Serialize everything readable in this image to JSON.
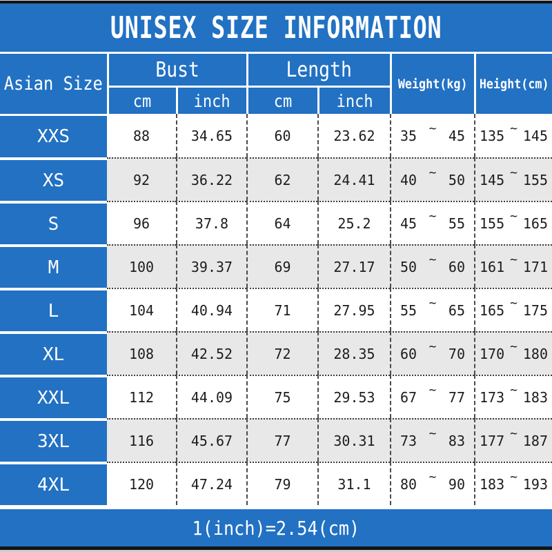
{
  "title": "UNISEX SIZE INFORMATION",
  "footer_note": "1(inch)=2.54(cm)",
  "tilde": "~",
  "colors": {
    "blue": "#2271c3",
    "row_shade": "#e8e8e8",
    "row_plain": "#ffffff",
    "bar_dark": "#141414",
    "text_dark": "#1c1c1c",
    "text_light": "#ffffff"
  },
  "header": {
    "corner": "Asian Size",
    "bust_group": "Bust",
    "length_group": "Length",
    "cm": "cm",
    "inch": "inch",
    "weight": "Weight(kg)",
    "height": "Height(cm)"
  },
  "rows": [
    {
      "size": "XXS",
      "bust_cm": "88",
      "bust_inch": "34.65",
      "length_cm": "60",
      "length_inch": "23.62",
      "weight_min": "35",
      "weight_max": "45",
      "height_min": "135",
      "height_max": "145"
    },
    {
      "size": "XS",
      "bust_cm": "92",
      "bust_inch": "36.22",
      "length_cm": "62",
      "length_inch": "24.41",
      "weight_min": "40",
      "weight_max": "50",
      "height_min": "145",
      "height_max": "155"
    },
    {
      "size": "S",
      "bust_cm": "96",
      "bust_inch": "37.8",
      "length_cm": "64",
      "length_inch": "25.2",
      "weight_min": "45",
      "weight_max": "55",
      "height_min": "155",
      "height_max": "165"
    },
    {
      "size": "M",
      "bust_cm": "100",
      "bust_inch": "39.37",
      "length_cm": "69",
      "length_inch": "27.17",
      "weight_min": "50",
      "weight_max": "60",
      "height_min": "161",
      "height_max": "171"
    },
    {
      "size": "L",
      "bust_cm": "104",
      "bust_inch": "40.94",
      "length_cm": "71",
      "length_inch": "27.95",
      "weight_min": "55",
      "weight_max": "65",
      "height_min": "165",
      "height_max": "175"
    },
    {
      "size": "XL",
      "bust_cm": "108",
      "bust_inch": "42.52",
      "length_cm": "72",
      "length_inch": "28.35",
      "weight_min": "60",
      "weight_max": "70",
      "height_min": "170",
      "height_max": "180"
    },
    {
      "size": "XXL",
      "bust_cm": "112",
      "bust_inch": "44.09",
      "length_cm": "75",
      "length_inch": "29.53",
      "weight_min": "67",
      "weight_max": "77",
      "height_min": "173",
      "height_max": "183"
    },
    {
      "size": "3XL",
      "bust_cm": "116",
      "bust_inch": "45.67",
      "length_cm": "77",
      "length_inch": "30.31",
      "weight_min": "73",
      "weight_max": "83",
      "height_min": "177",
      "height_max": "187"
    },
    {
      "size": "4XL",
      "bust_cm": "120",
      "bust_inch": "47.24",
      "length_cm": "79",
      "length_inch": "31.1",
      "weight_min": "80",
      "weight_max": "90",
      "height_min": "183",
      "height_max": "193"
    }
  ]
}
